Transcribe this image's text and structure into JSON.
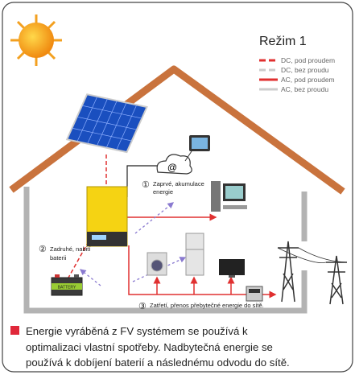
{
  "title": "Režim 1",
  "legend": [
    "DC, pod proudem",
    "DC, bez proudu",
    "AC, pod proudem",
    "AC, bez proudu"
  ],
  "steps": [
    {
      "number": "①",
      "lines": [
        "Zaprvé, akumulace",
        "energie"
      ]
    },
    {
      "number": "②",
      "lines": [
        "Zadruhé, nabití",
        "baterii"
      ]
    },
    {
      "number": "③",
      "lines": [
        "Zatřetí, přenos přebytečné energie do sítě."
      ]
    }
  ],
  "cloud_label": "@",
  "battery_label": "BATTERY",
  "description": [
    "Energie vyráběná z FV systémem se používá k",
    "optimalizaci vlastní spotřeby. Nadbytečná energie se",
    "používá k dobíjení baterií a následnému odvodu do sítě."
  ]
}
